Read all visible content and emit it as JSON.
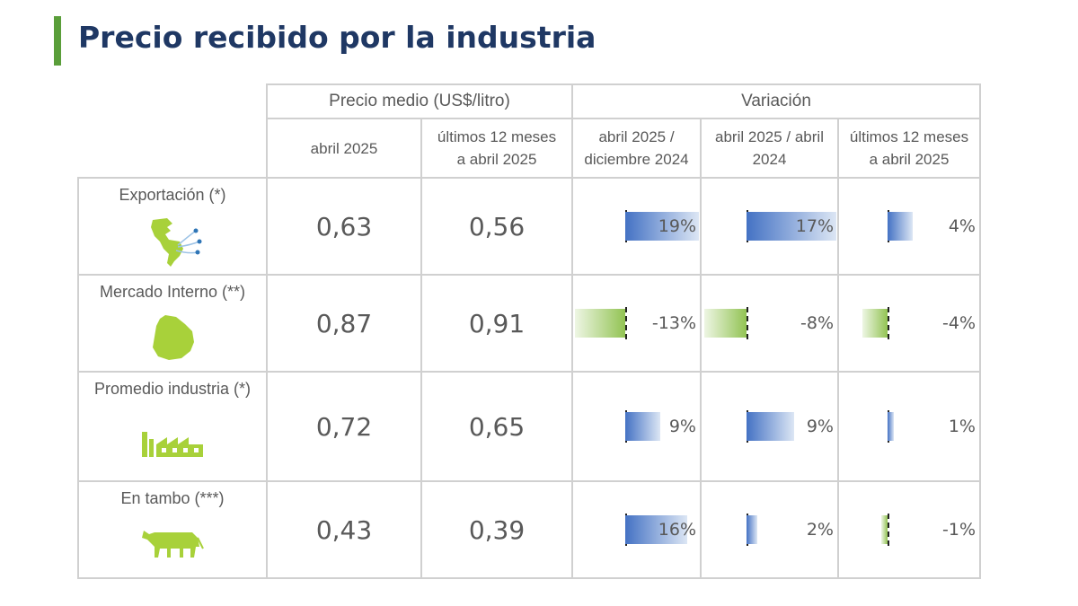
{
  "title": "Precio recibido por la industria",
  "header": {
    "group_price": "Precio medio (US$/litro)",
    "group_variation": "Variación",
    "col_month_1": "abril 2025",
    "col_month_2": "",
    "col_12m_1": "últimos 12 meses",
    "col_12m_2": "a abril 2025",
    "col_var_dec_1": "abril 2025 /",
    "col_var_dec_2": "diciembre 2024",
    "col_var_yoy_1": "abril 2025 / abril",
    "col_var_yoy_2": "2024",
    "col_var_12m_1": "últimos 12 meses",
    "col_var_12m_2": "a abril 2025"
  },
  "rows": [
    {
      "label": "Exportación (*)",
      "icon": "map-americas-icon",
      "price_month": "0,63",
      "price_12m": "0,56",
      "var_dec": "19%",
      "var_yoy": "17%",
      "var_12m": "4%"
    },
    {
      "label": "Mercado Interno (**)",
      "icon": "map-uruguay-icon",
      "price_month": "0,87",
      "price_12m": "0,91",
      "var_dec": "-13%",
      "var_yoy": "-8%",
      "var_12m": "-4%"
    },
    {
      "label": "Promedio industria (*)",
      "icon": "factory-icon",
      "price_month": "0,72",
      "price_12m": "0,65",
      "var_dec": "9%",
      "var_yoy": "9%",
      "var_12m": "1%"
    },
    {
      "label": "En tambo (***)",
      "icon": "cow-icon",
      "price_month": "0,43",
      "price_12m": "0,39",
      "var_dec": "16%",
      "var_yoy": "2%",
      "var_12m": "-1%"
    }
  ],
  "colors": {
    "title": "#1f3864",
    "accent_bar": "#5a9e3a",
    "value": "#2e75b6",
    "bar_positive": "#4472c4",
    "bar_negative": "#92c353",
    "icon_green": "#a8d13a"
  },
  "chart_data": {
    "type": "table",
    "title": "Precio recibido por la industria",
    "columns": [
      "Precio medio abril 2025 (US$/litro)",
      "Precio medio últimos 12 meses a abril 2025 (US$/litro)",
      "Variación abril 2025 / diciembre 2024 (%)",
      "Variación abril 2025 / abril 2024 (%)",
      "Variación últimos 12 meses a abril 2025 (%)"
    ],
    "categories": [
      "Exportación (*)",
      "Mercado Interno (**)",
      "Promedio industria (*)",
      "En tambo (***)"
    ],
    "series": [
      {
        "name": "Precio abril 2025",
        "values": [
          0.63,
          0.87,
          0.72,
          0.43
        ]
      },
      {
        "name": "Precio últimos 12 meses",
        "values": [
          0.56,
          0.91,
          0.65,
          0.39
        ]
      },
      {
        "name": "Var. abril 2025 / diciembre 2024",
        "values": [
          19,
          -13,
          9,
          16
        ]
      },
      {
        "name": "Var. abril 2025 / abril 2024",
        "values": [
          17,
          -8,
          9,
          2
        ]
      },
      {
        "name": "Var. últimos 12 meses",
        "values": [
          4,
          -4,
          1,
          -1
        ]
      }
    ]
  }
}
